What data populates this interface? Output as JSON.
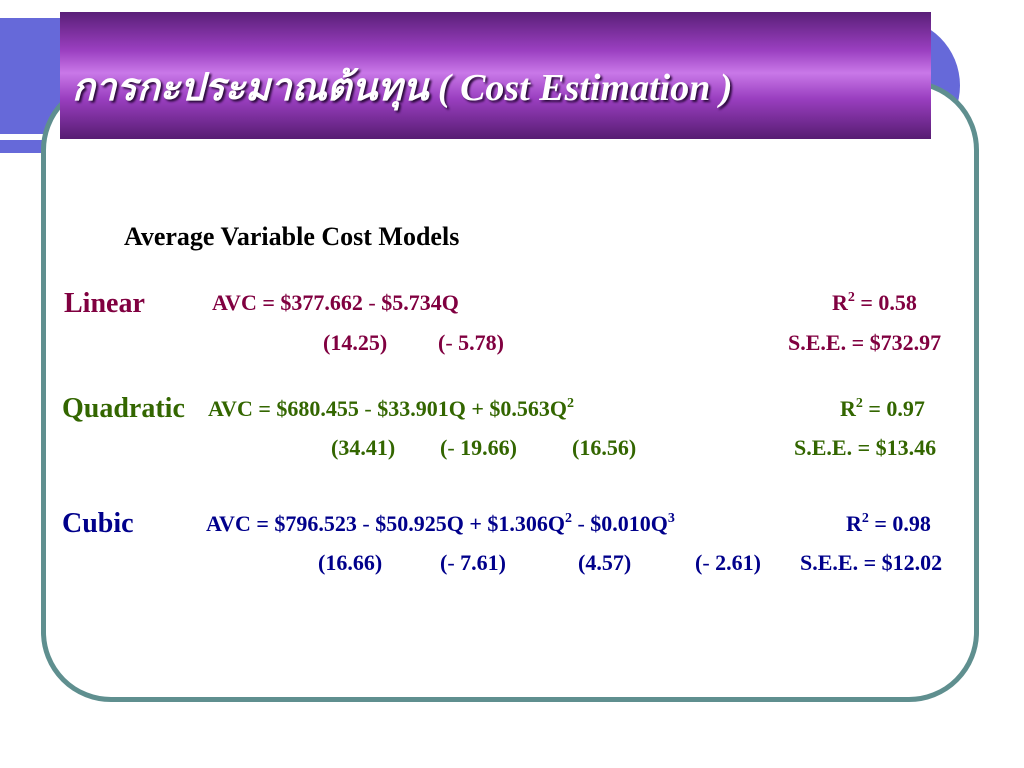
{
  "title": "การกะประมาณต้นทุน ( Cost Estimation )",
  "subtitle": "Average Variable Cost Models",
  "colors": {
    "linear": "#800040",
    "quadratic": "#336600",
    "cubic": "#00008b",
    "title_band": "#9a3fc0",
    "accent_bar": "#6669d9",
    "frame": "#5f8f8f"
  },
  "models": {
    "linear": {
      "label": "Linear",
      "eq_prefix": "AVC  =  $377.662",
      "eq_t1": "$5.734Q",
      "r2_val": "= 0.58",
      "se_1": "(14.25)",
      "se_2": "5.78)",
      "see": "S.E.E. = $732.97"
    },
    "quadratic": {
      "label": "Quadratic",
      "eq_prefix": "AVC  =  $680.455",
      "eq_t1": "$33.901Q + $0.563Q",
      "r2_val": "= 0.97",
      "se_1": "(34.41)",
      "se_2": "19.66)",
      "se_3": "(16.56)",
      "see": "S.E.E. = $13.46"
    },
    "cubic": {
      "label": "Cubic",
      "eq_prefix": "AVC  =  $796.523",
      "eq_t1": "$50.925Q + $1.306Q",
      "eq_t2": "$0.010Q",
      "r2_val": "= 0.98",
      "se_1": "(16.66)",
      "se_2": "7.61)",
      "se_3": "(4.57)",
      "se_4": "2.61)",
      "see": "S.E.E. = $12.02"
    }
  }
}
